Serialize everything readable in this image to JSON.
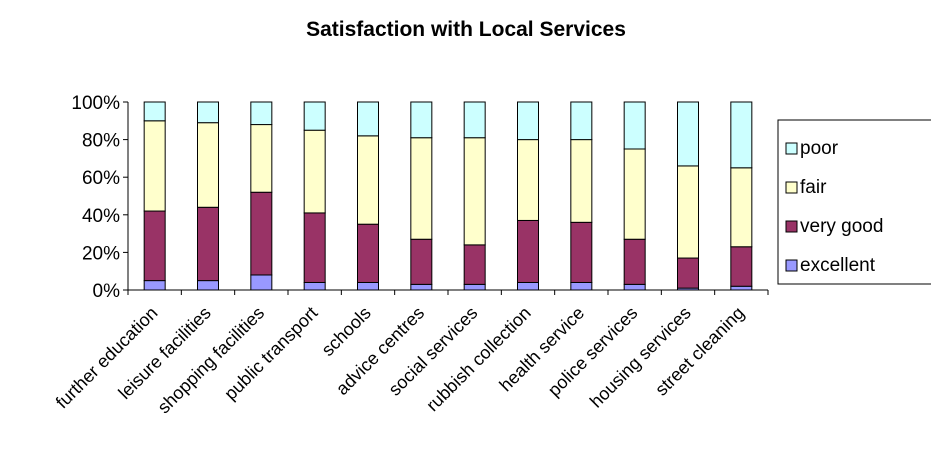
{
  "chart_data": {
    "type": "bar",
    "stacked": true,
    "normalized": true,
    "title": "Satisfaction with Local Services",
    "xlabel": "",
    "ylabel": "",
    "ylim": [
      0,
      100
    ],
    "yticks": [
      "0%",
      "20%",
      "40%",
      "60%",
      "80%",
      "100%"
    ],
    "categories": [
      "further education",
      "leisure facilities",
      "shopping facilities",
      "public transport",
      "schools",
      "advice centres",
      "social services",
      "rubbish collection",
      "health service",
      "police services",
      "housing services",
      "street cleaning"
    ],
    "series": [
      {
        "name": "excellent",
        "color": "#9999ff",
        "values": [
          5,
          5,
          8,
          4,
          4,
          3,
          3,
          4,
          4,
          3,
          1,
          2
        ]
      },
      {
        "name": "very good",
        "color": "#993366",
        "values": [
          37,
          39,
          44,
          37,
          31,
          24,
          21,
          33,
          32,
          24,
          16,
          21
        ]
      },
      {
        "name": "fair",
        "color": "#ffffcc",
        "values": [
          48,
          45,
          36,
          44,
          47,
          54,
          57,
          43,
          44,
          48,
          49,
          42
        ]
      },
      {
        "name": "poor",
        "color": "#ccffff",
        "values": [
          10,
          11,
          12,
          15,
          18,
          19,
          19,
          20,
          20,
          25,
          34,
          35
        ]
      }
    ],
    "legend": {
      "position": "right",
      "order": [
        "poor",
        "fair",
        "very good",
        "excellent"
      ]
    },
    "grid": false
  }
}
